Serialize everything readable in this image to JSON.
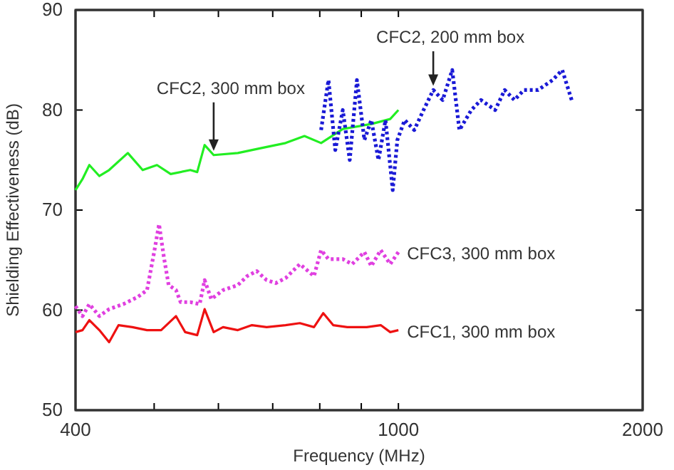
{
  "chart_data": {
    "type": "line",
    "xlabel": "Frequency (MHz)",
    "ylabel": "Shielding Effectiveness (dB)",
    "log": "x",
    "xlim": [
      400,
      2000
    ],
    "xticks": [
      400,
      {
        "value": 500,
        "label": null
      },
      {
        "value": 600,
        "label": null
      },
      {
        "value": 700,
        "label": null
      },
      {
        "value": 800,
        "label": null
      },
      {
        "value": 900,
        "label": null
      },
      1000,
      2000
    ],
    "ylim": [
      50,
      90
    ],
    "yticks": [
      50,
      60,
      70,
      80,
      90
    ],
    "grid": false,
    "series": [
      {
        "color": "#22ee22",
        "line_style": "solid",
        "x": [
          400,
          408,
          416,
          428,
          440,
          464,
          484,
          504,
          524,
          554,
          565,
          577,
          592,
          634,
          678,
          726,
          766,
          803,
          854,
          926,
          977,
          1000
        ],
        "values": [
          72,
          73.1,
          74.5,
          73.4,
          74,
          75.7,
          74,
          74.5,
          73.6,
          74,
          73.8,
          76.5,
          75.5,
          75.7,
          76.2,
          76.7,
          77.4,
          76.7,
          78.1,
          78.6,
          79.1,
          80
        ]
      },
      {
        "color": "#1a1ad6",
        "line_style": "dotted",
        "x": [
          803,
          820,
          836,
          854,
          871,
          889,
          908,
          926,
          945,
          964,
          984,
          997,
          1018,
          1046,
          1074,
          1104,
          1134,
          1165,
          1189,
          1230,
          1264,
          1316,
          1352,
          1390,
          1428,
          1487,
          1549,
          1592,
          1635
        ],
        "values": [
          78,
          83,
          76,
          80,
          75,
          83,
          77,
          79,
          75,
          79,
          72,
          77,
          79,
          78,
          80,
          82,
          81,
          84,
          78,
          80,
          81,
          80,
          82,
          81,
          82,
          82,
          83,
          84,
          81
        ]
      },
      {
        "name": "CFC3, 300 mm box",
        "color": "#e040e0",
        "line_style": "dotted",
        "x": [
          400,
          408,
          416,
          428,
          440,
          458,
          477,
          490,
          500,
          507,
          514,
          521,
          532,
          539,
          554,
          569,
          577,
          588,
          608,
          634,
          651,
          669,
          688,
          706,
          726,
          756,
          787,
          803,
          820,
          854,
          877,
          908,
          926,
          951,
          977,
          1000
        ],
        "values": [
          60.4,
          59.4,
          60.6,
          59.4,
          60.1,
          60.6,
          61.3,
          62,
          65.8,
          68.6,
          65.3,
          62.5,
          62,
          60.8,
          60.8,
          60.6,
          63,
          61.1,
          62,
          62.5,
          63.4,
          63.9,
          63,
          62.7,
          63.2,
          64.6,
          63.4,
          66,
          65.1,
          65.1,
          64.6,
          65.8,
          64.4,
          66,
          64.6,
          65.8
        ]
      },
      {
        "name": "CFC1, 300 mm box",
        "color": "#ee1111",
        "line_style": "solid",
        "x": [
          400,
          408,
          416,
          428,
          440,
          452,
          470,
          490,
          510,
          532,
          546,
          565,
          577,
          592,
          608,
          634,
          660,
          688,
          726,
          756,
          787,
          808,
          831,
          865,
          914,
          951,
          977,
          1000
        ],
        "values": [
          57.8,
          58,
          59,
          58,
          56.8,
          58.5,
          58.3,
          58,
          58,
          59.4,
          57.8,
          57.5,
          60.1,
          57.8,
          58.3,
          58,
          58.5,
          58.3,
          58.5,
          58.7,
          58.3,
          59.7,
          58.5,
          58.3,
          58.3,
          58.5,
          57.8,
          58
        ]
      }
    ],
    "annotations": [
      {
        "text": "CFC2, 300 mm box",
        "x": 592,
        "y": 75.5
      },
      {
        "text": "CFC2, 200 mm box",
        "x": 1104,
        "y": 82
      }
    ]
  }
}
